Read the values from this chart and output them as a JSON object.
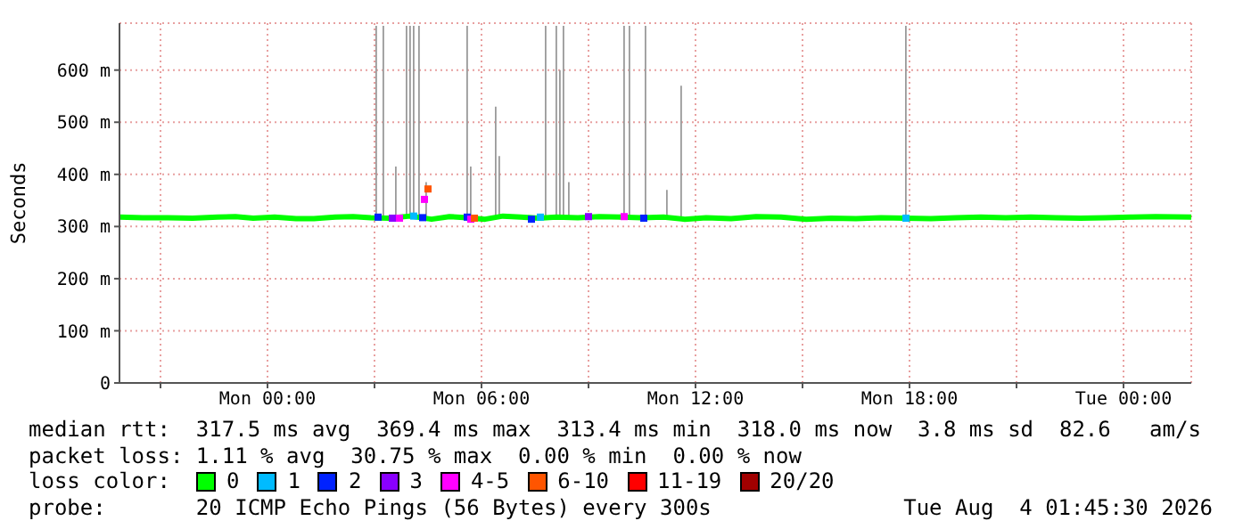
{
  "chart_data": {
    "type": "line",
    "ylabel": "Seconds",
    "legend_title": "loss color:",
    "legend": "bottom",
    "grid": true,
    "xlim": [
      "2026-08-02T19:51",
      "2026-08-04T01:54"
    ],
    "xticks": [
      {
        "value": "2026-08-02T21:00",
        "label": null
      },
      {
        "value": "2026-08-03T00:00",
        "label": "Mon 00:00"
      },
      {
        "value": "2026-08-03T03:00",
        "label": null
      },
      {
        "value": "2026-08-03T06:00",
        "label": "Mon 06:00"
      },
      {
        "value": "2026-08-03T09:00",
        "label": null
      },
      {
        "value": "2026-08-03T12:00",
        "label": "Mon 12:00"
      },
      {
        "value": "2026-08-03T15:00",
        "label": null
      },
      {
        "value": "2026-08-03T18:00",
        "label": "Mon 18:00"
      },
      {
        "value": "2026-08-03T21:00",
        "label": null
      },
      {
        "value": "2026-08-04T00:00",
        "label": "Tue 00:00"
      }
    ],
    "ylim": [
      0,
      690
    ],
    "yticks": [
      0,
      {
        "value": 100,
        "label": "100 m"
      },
      {
        "value": 200,
        "label": "200 m"
      },
      {
        "value": 300,
        "label": "300 m"
      },
      {
        "value": 400,
        "label": "400 m"
      },
      {
        "value": 500,
        "label": "500 m"
      },
      {
        "value": 600,
        "label": "600 m"
      }
    ],
    "series": [
      {
        "type": "bar",
        "color": "#9a9a9a",
        "x": [
          "2026-08-03T03:03",
          "2026-08-03T03:15",
          "2026-08-03T03:36",
          "2026-08-03T03:54",
          "2026-08-03T04:00",
          "2026-08-03T04:06",
          "2026-08-03T04:15",
          "2026-08-03T04:27",
          "2026-08-03T05:36",
          "2026-08-03T05:42",
          "2026-08-03T06:24",
          "2026-08-03T06:30",
          "2026-08-03T07:48",
          "2026-08-03T08:06",
          "2026-08-03T08:12",
          "2026-08-03T08:18",
          "2026-08-03T08:27",
          "2026-08-03T10:00",
          "2026-08-03T10:09",
          "2026-08-03T10:36",
          "2026-08-03T11:12",
          "2026-08-03T11:36",
          "2026-08-03T17:54"
        ],
        "base": [
          317,
          317,
          317,
          317,
          317,
          317,
          317,
          317,
          317,
          317,
          317,
          317,
          317,
          317,
          317,
          317,
          317,
          317,
          317,
          317,
          317,
          317,
          317
        ],
        "values": [
          368,
          368,
          98,
          368,
          368,
          368,
          368,
          68,
          368,
          98,
          213,
          118,
          368,
          368,
          283,
          368,
          68,
          368,
          368,
          368,
          53,
          253,
          368
        ]
      },
      {
        "name": "0",
        "color": "#00ff00",
        "x": [
          "2026-08-02T19:51",
          "2026-08-02T20:30",
          "2026-08-02T21:12",
          "2026-08-02T21:54",
          "2026-08-02T22:36",
          "2026-08-02T23:06",
          "2026-08-02T23:36",
          "2026-08-03T00:12",
          "2026-08-03T00:48",
          "2026-08-03T01:18",
          "2026-08-03T01:54",
          "2026-08-03T02:24",
          "2026-08-03T02:54",
          "2026-08-03T03:24",
          "2026-08-03T04:00",
          "2026-08-03T04:36",
          "2026-08-03T05:06",
          "2026-08-03T05:36",
          "2026-08-03T06:06",
          "2026-08-03T06:36",
          "2026-08-03T07:06",
          "2026-08-03T07:36",
          "2026-08-03T08:06",
          "2026-08-03T08:42",
          "2026-08-03T09:18",
          "2026-08-03T09:54",
          "2026-08-03T10:30",
          "2026-08-03T11:06",
          "2026-08-03T11:42",
          "2026-08-03T12:18",
          "2026-08-03T13:00",
          "2026-08-03T13:42",
          "2026-08-03T14:24",
          "2026-08-03T15:06",
          "2026-08-03T15:48",
          "2026-08-03T16:30",
          "2026-08-03T17:12",
          "2026-08-03T17:54",
          "2026-08-03T18:36",
          "2026-08-03T19:18",
          "2026-08-03T20:00",
          "2026-08-03T20:42",
          "2026-08-03T21:24",
          "2026-08-03T22:06",
          "2026-08-03T22:48",
          "2026-08-03T23:30",
          "2026-08-04T00:12",
          "2026-08-04T00:54",
          "2026-08-04T01:54"
        ],
        "values": [
          318,
          317,
          317,
          316,
          318,
          319,
          316,
          318,
          315,
          315,
          318,
          319,
          317,
          316,
          320,
          314,
          319,
          317,
          314,
          320,
          318,
          316,
          318,
          317,
          319,
          318,
          317,
          318,
          314,
          317,
          315,
          319,
          318,
          314,
          316,
          315,
          317,
          316,
          315,
          317,
          318,
          317,
          318,
          317,
          316,
          317,
          318,
          319,
          318
        ]
      },
      {
        "name": "1",
        "type": "scatter",
        "color": "#00bbff",
        "x": [
          "2026-08-03T04:06",
          "2026-08-03T07:39",
          "2026-08-03T17:54"
        ],
        "values": [
          320,
          318,
          316
        ]
      },
      {
        "name": "2",
        "type": "scatter",
        "color": "#0022ff",
        "x": [
          "2026-08-03T03:06",
          "2026-08-03T04:21",
          "2026-08-03T05:36",
          "2026-08-03T07:24",
          "2026-08-03T10:33"
        ],
        "values": [
          318,
          317,
          318,
          314,
          316
        ]
      },
      {
        "name": "3",
        "type": "scatter",
        "color": "#8a00ff",
        "x": [
          "2026-08-03T03:30",
          "2026-08-03T09:00"
        ],
        "values": [
          316,
          319
        ]
      },
      {
        "name": "4-5",
        "type": "scatter",
        "color": "#ff00ff",
        "x": [
          "2026-08-03T03:42",
          "2026-08-03T04:24",
          "2026-08-03T05:42",
          "2026-08-03T10:00"
        ],
        "values": [
          316,
          352,
          314,
          319
        ]
      },
      {
        "name": "6-10",
        "type": "scatter",
        "color": "#ff5500",
        "x": [
          "2026-08-03T04:30",
          "2026-08-03T05:48"
        ],
        "values": [
          372,
          316
        ]
      },
      {
        "name": "11-19",
        "type": "scatter",
        "color": "#ff0000"
      },
      {
        "name": "20/20",
        "type": "scatter",
        "color": "#a10000"
      }
    ],
    "annotations": [
      "median rtt:  317.5 ms avg  369.4 ms max  313.4 ms min  318.0 ms now  3.8 ms sd  82.6   am/s",
      "packet loss: 1.11 % avg  30.75 % max  0.00 % min  0.00 % now",
      "probe:       20 ICMP Echo Pings (56 Bytes) every 300s",
      "Tue Aug  4 01:45:30 2026"
    ]
  }
}
